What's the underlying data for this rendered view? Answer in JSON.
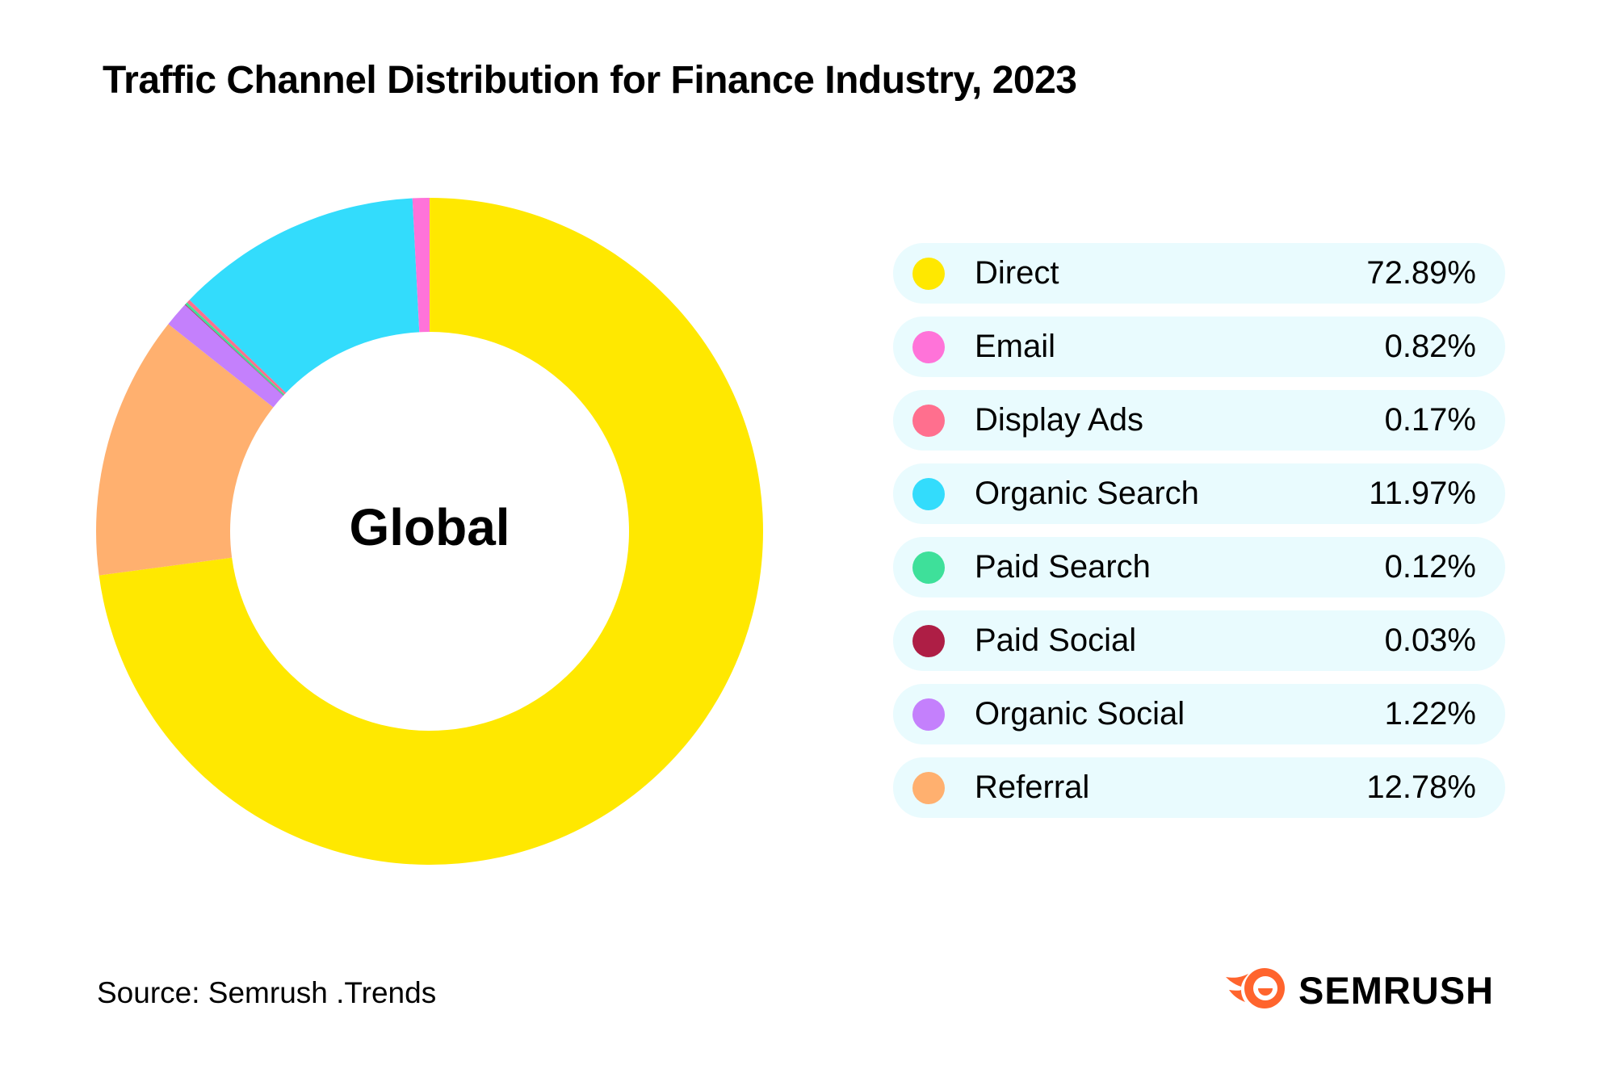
{
  "chart_data": {
    "type": "pie",
    "title": "Traffic Channel Distribution for Finance Industry, 2023",
    "center_label": "Global",
    "series": [
      {
        "name": "Direct",
        "value": 72.89,
        "label": "72.89%",
        "color": "#ffe800"
      },
      {
        "name": "Email",
        "value": 0.82,
        "label": "0.82%",
        "color": "#ff73d9"
      },
      {
        "name": "Display Ads",
        "value": 0.17,
        "label": "0.17%",
        "color": "#ff6f8e"
      },
      {
        "name": "Organic Search",
        "value": 11.97,
        "label": "11.97%",
        "color": "#33dcfc"
      },
      {
        "name": "Paid Search",
        "value": 0.12,
        "label": "0.12%",
        "color": "#3ee09a"
      },
      {
        "name": "Paid Social",
        "value": 0.03,
        "label": "0.03%",
        "color": "#ae1e45"
      },
      {
        "name": "Organic Social",
        "value": 1.22,
        "label": "1.22%",
        "color": "#c480fc"
      },
      {
        "name": "Referral",
        "value": 12.78,
        "label": "12.78%",
        "color": "#ffb06f"
      }
    ],
    "draw_order": [
      "Direct",
      "Referral",
      "Organic Social",
      "Paid Social",
      "Paid Search",
      "Display Ads",
      "Organic Search",
      "Email"
    ],
    "legend_position": "right"
  },
  "source": "Source: Semrush .Trends",
  "brand": {
    "name": "SEMRUSH",
    "icon": "semrush-fireball-logo",
    "accent_color": "#ff642d"
  },
  "colors": {
    "legend_row_background": "#e9fbfe"
  }
}
